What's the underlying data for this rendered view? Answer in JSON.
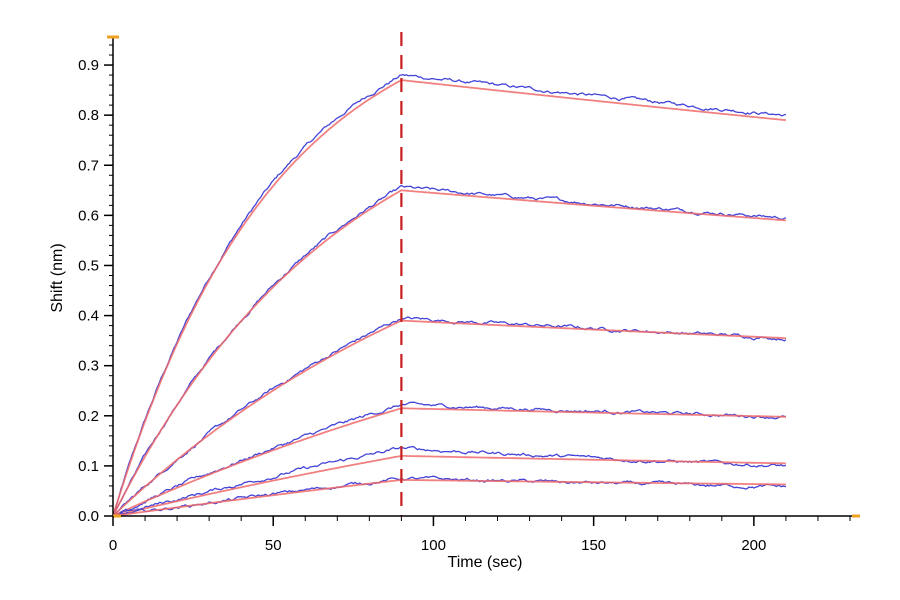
{
  "chart_data": {
    "type": "line",
    "xlabel": "Time (sec)",
    "ylabel": "Shift (nm)",
    "xlim": [
      0,
      230
    ],
    "ylim": [
      0,
      0.95
    ],
    "x_ticks": [
      0,
      50,
      100,
      150,
      200
    ],
    "x_tick_labels": [
      "0",
      "50",
      "100",
      "150",
      "200"
    ],
    "y_ticks": [
      0.0,
      0.1,
      0.2,
      0.3,
      0.4,
      0.5,
      0.6,
      0.7,
      0.8,
      0.9
    ],
    "y_tick_labels": [
      "0.0",
      "0.1",
      "0.2",
      "0.3",
      "0.4",
      "0.5",
      "0.6",
      "0.7",
      "0.8",
      "0.9"
    ],
    "dissociation_start_x": 90,
    "grid": false,
    "colors": {
      "measured": "#3a3ad6",
      "fit": "#ef6a6a",
      "marker_line": "#c81e1e",
      "axis": "#000000",
      "axis_end": "#f0a020"
    },
    "series": [
      {
        "kind": "measured",
        "peak": 0.88,
        "end": 0.8
      },
      {
        "kind": "fit",
        "peak": 0.87,
        "end": 0.79
      },
      {
        "kind": "measured",
        "peak": 0.655,
        "end": 0.595
      },
      {
        "kind": "fit",
        "peak": 0.65,
        "end": 0.59
      },
      {
        "kind": "measured",
        "peak": 0.395,
        "end": 0.355
      },
      {
        "kind": "fit",
        "peak": 0.39,
        "end": 0.355
      },
      {
        "kind": "measured",
        "peak": 0.222,
        "end": 0.198
      },
      {
        "kind": "fit",
        "peak": 0.215,
        "end": 0.198
      },
      {
        "kind": "measured",
        "peak": 0.135,
        "end": 0.1
      },
      {
        "kind": "fit",
        "peak": 0.12,
        "end": 0.105
      },
      {
        "kind": "measured",
        "peak": 0.075,
        "end": 0.058
      },
      {
        "kind": "fit",
        "peak": 0.072,
        "end": 0.063
      }
    ]
  }
}
